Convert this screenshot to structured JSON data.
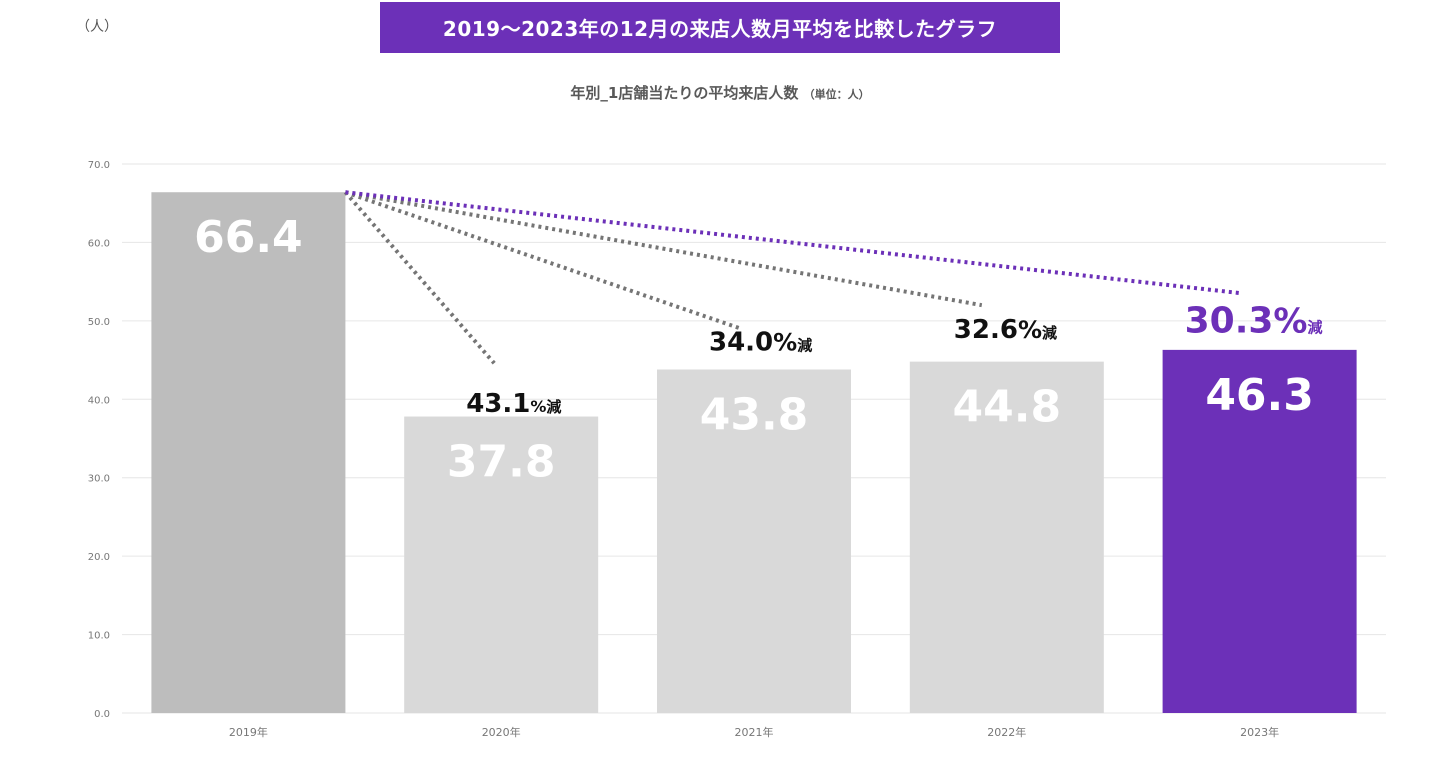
{
  "header": {
    "unit_label": "（人）",
    "banner_title": "2019〜2023年の12月の来店人数月平均を比較したグラフ"
  },
  "colors": {
    "accent": "#6c30b8",
    "bar_2019": "#bdbdbd",
    "bar_mid": "#d9d9d9",
    "dotted_gray": "#757575",
    "grid": "#e6e6e6",
    "tick_text": "#777777"
  },
  "chart_data": {
    "type": "bar",
    "title": "年別_1店舗当たりの平均来店人数",
    "title_unit": "（単位：人）",
    "xlabel": "",
    "ylabel": "（人）",
    "ylim": [
      0,
      70
    ],
    "y_ticks": [
      "0.0",
      "10.0",
      "20.0",
      "30.0",
      "40.0",
      "50.0",
      "60.0",
      "70.0"
    ],
    "grid": true,
    "categories": [
      "2019年",
      "2020年",
      "2021年",
      "2022年",
      "2023年"
    ],
    "values": [
      66.4,
      37.8,
      43.8,
      44.8,
      46.3
    ],
    "value_labels": [
      "66.4",
      "37.8",
      "43.8",
      "44.8",
      "46.3"
    ],
    "highlight_index": 4,
    "base_index": 0,
    "decrease_annotations": [
      {
        "target_index": 1,
        "percent": "43.1",
        "pct_sign": "%",
        "suffix": "減",
        "highlight": false
      },
      {
        "target_index": 2,
        "percent": "34.0",
        "pct_sign": "%",
        "suffix": "減",
        "highlight": false
      },
      {
        "target_index": 3,
        "percent": "32.6",
        "pct_sign": "%",
        "suffix": "減",
        "highlight": false
      },
      {
        "target_index": 4,
        "percent": "30.3",
        "pct_sign": "%",
        "suffix": "減",
        "highlight": true
      }
    ]
  }
}
